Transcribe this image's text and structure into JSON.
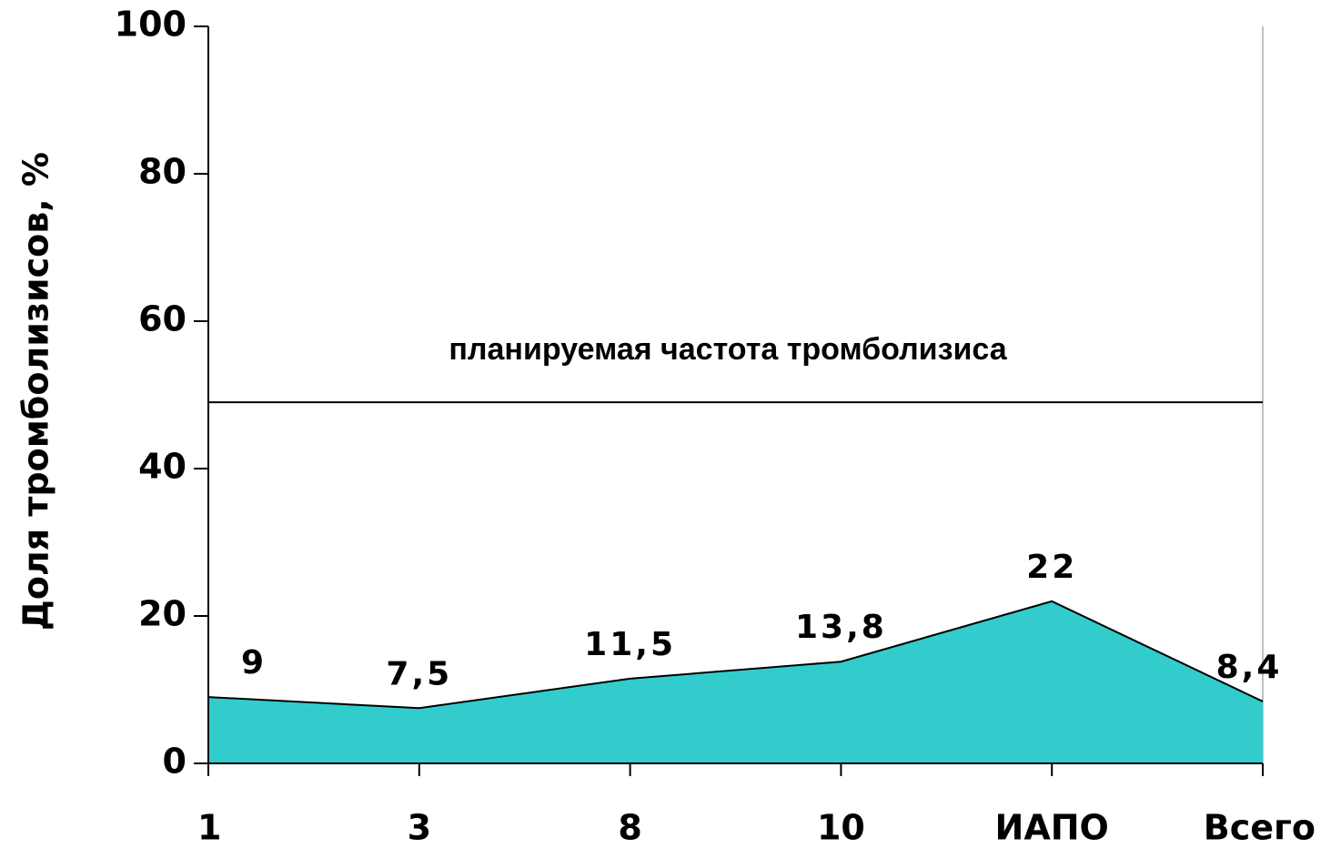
{
  "chart_data": {
    "type": "area",
    "y_label": "Доля тромболизисов, %",
    "categories": [
      "1",
      "3",
      "8",
      "10",
      "ИАПО",
      "Всего"
    ],
    "values": [
      9,
      7.5,
      11.5,
      13.8,
      22,
      8.4
    ],
    "value_labels": [
      "9",
      "7,5",
      "11,5",
      "13,8",
      "22",
      "8,4"
    ],
    "color": "#33cccc",
    "ylim": [
      0,
      100
    ],
    "yticks": [
      0,
      20,
      40,
      60,
      80,
      100
    ],
    "reference_line": {
      "value": 49,
      "label": "планируемая частота тромболизиса"
    }
  }
}
